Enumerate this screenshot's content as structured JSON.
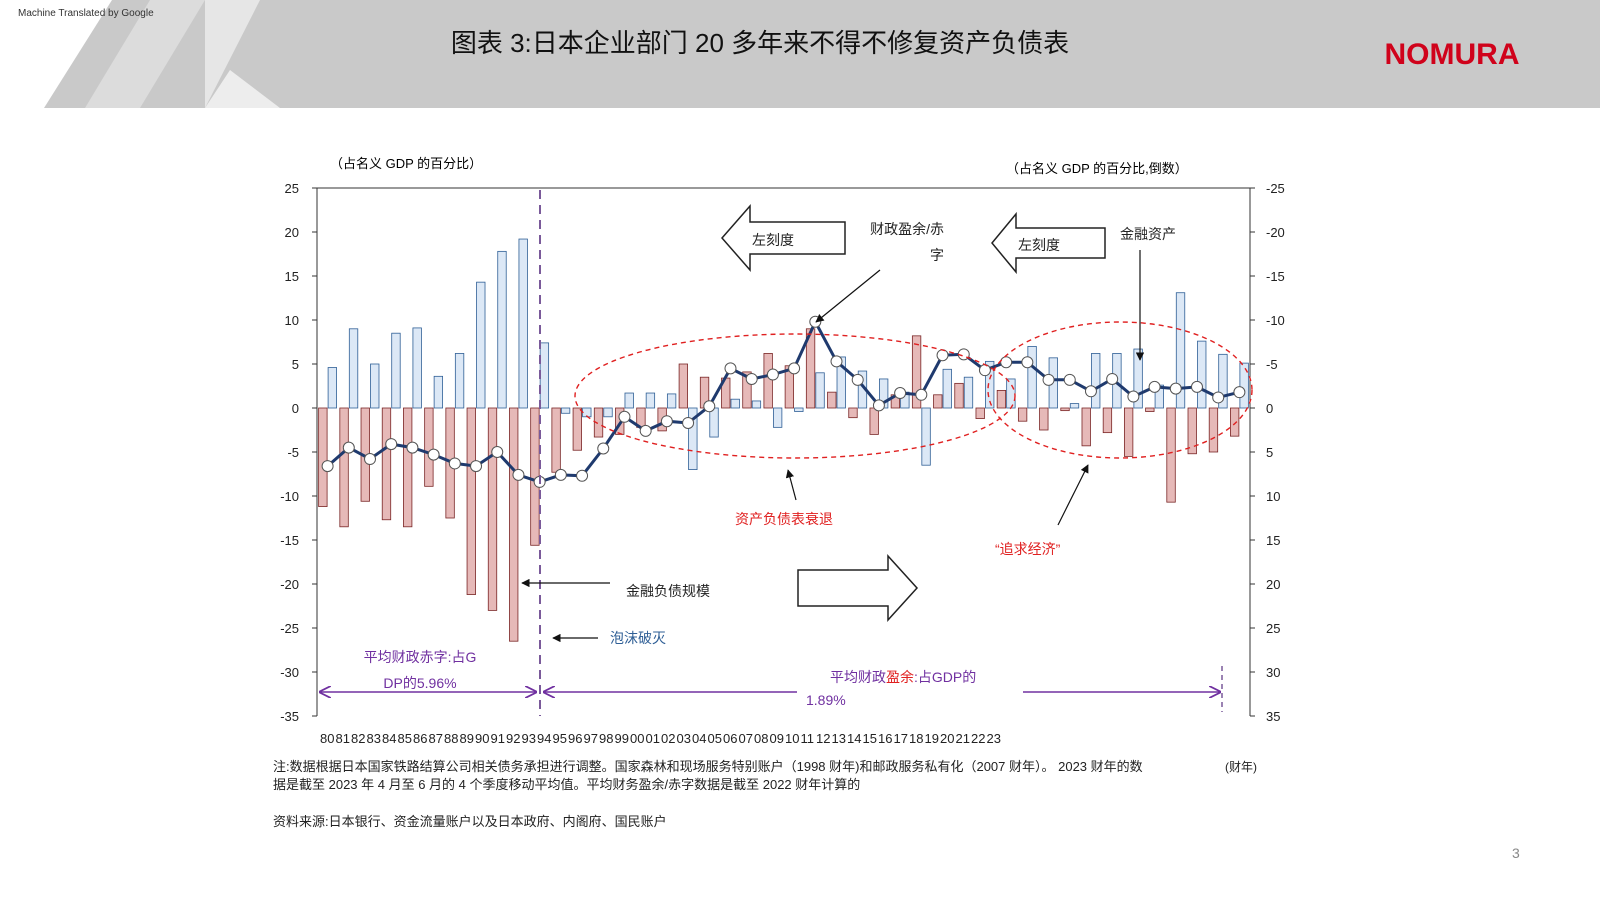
{
  "header": {
    "watermark": "Machine Translated by Google",
    "title": "图表 3:日本企业部门 20 多年来不得不修复资产负债表",
    "logo": "NOMURA"
  },
  "chart_data": {
    "type": "bar",
    "y_axis_label": "（占名义 GDP 的百分比）",
    "y2_axis_label": "（占名义 GDP 的百分比,倒数）",
    "x_axis_label": "(财年)",
    "categories": [
      "80",
      "81",
      "82",
      "83",
      "84",
      "85",
      "86",
      "87",
      "88",
      "89",
      "90",
      "91",
      "92",
      "93",
      "94",
      "95",
      "96",
      "97",
      "98",
      "99",
      "00",
      "01",
      "02",
      "03",
      "04",
      "05",
      "06",
      "07",
      "08",
      "09",
      "10",
      "11",
      "12",
      "13",
      "14",
      "15",
      "16",
      "17",
      "18",
      "19",
      "20",
      "21",
      "22",
      "23"
    ],
    "series": [
      {
        "name": "金融资产",
        "type": "bar",
        "color": "#dce8f6",
        "stroke": "#2f5f96",
        "values": [
          4.6,
          9.0,
          5.0,
          8.5,
          9.1,
          3.6,
          6.2,
          14.3,
          17.8,
          19.2,
          7.4,
          -0.6,
          -1.0,
          -1.0,
          1.7,
          1.7,
          1.6,
          -7.0,
          -3.3,
          1.0,
          0.8,
          -2.2,
          -0.4,
          4.0,
          5.8,
          4.2,
          3.3,
          1.8,
          -6.5,
          4.4,
          3.5,
          5.3,
          3.3,
          7.0,
          5.7,
          0.5,
          6.2,
          6.2,
          6.7,
          2.6,
          13.1,
          7.6,
          6.1,
          5.1
        ]
      },
      {
        "name": "金融负债规模",
        "type": "bar",
        "color": "#e6b9b8",
        "stroke": "#7a2626",
        "values": [
          -11.2,
          -13.5,
          -10.6,
          -12.7,
          -13.5,
          -8.9,
          -12.5,
          -21.2,
          -23.0,
          -26.5,
          -15.6,
          -7.3,
          -4.8,
          -3.3,
          -3.0,
          -2.2,
          -2.6,
          5.0,
          3.5,
          3.4,
          4.1,
          6.2,
          4.8,
          9.0,
          1.8,
          -1.1,
          -3.0,
          1.5,
          8.2,
          1.5,
          2.8,
          -1.2,
          2.0,
          -1.5,
          -2.5,
          -0.3,
          -4.3,
          -2.8,
          -5.5,
          -0.4,
          -10.7,
          -5.2,
          -5.0,
          -3.2
        ]
      },
      {
        "name": "财政盈余/赤字",
        "type": "line",
        "color": "#1f3a6e",
        "values": [
          -6.6,
          -4.5,
          -5.8,
          -4.1,
          -4.5,
          -5.3,
          -6.3,
          -6.6,
          -5.0,
          -7.6,
          -8.4,
          -7.6,
          -7.7,
          -4.6,
          -1.0,
          -2.6,
          -1.5,
          -1.7,
          0.2,
          4.5,
          3.3,
          3.8,
          4.5,
          9.8,
          5.3,
          3.2,
          0.3,
          1.7,
          1.5,
          6.0,
          6.1,
          4.3,
          5.2,
          5.2,
          3.2,
          3.2,
          1.9,
          3.3,
          1.3,
          2.4,
          2.2,
          2.4,
          1.2,
          1.8
        ]
      }
    ],
    "ylim": [
      -35,
      25
    ],
    "yticks": [
      25,
      20,
      15,
      10,
      5,
      0,
      -5,
      -10,
      -15,
      -20,
      -25,
      -30,
      -35
    ],
    "y2lim": [
      35,
      -25
    ],
    "y2ticks": [
      -25,
      -20,
      -15,
      -10,
      -5,
      0,
      5,
      10,
      15,
      20,
      25,
      30,
      35
    ],
    "annotations": {
      "left_scale_1": "左刻度",
      "left_scale_2": "左刻度",
      "balance_sheet_recession": "资产负债表衰退",
      "chasing_economy": "“追求经济”",
      "bubble_burst": "泡沫破灭",
      "avg_deficit": "平均财政赤字:占GDP的5.96%",
      "avg_surplus": [
        "平均财政",
        "盈余",
        ":占GDP的",
        "1.89%"
      ]
    }
  },
  "notes": {
    "note": [
      "注:数据根据日本国家铁路结算公司相关债务承担进行调整。国家森林和现场服务特别账户（1998 财年)和邮政服务私有化（2007 财年）。 2023 财年的数",
      "据是截至 2023 年 4 月至 6 月的 4 个季度移动平均值。平均财务盈余/赤字数据是截至 2022 财年计算的"
    ],
    "source": "资料来源:日本银行、资金流量账户以及日本政府、内阁府、国民账户",
    "page": "3"
  }
}
